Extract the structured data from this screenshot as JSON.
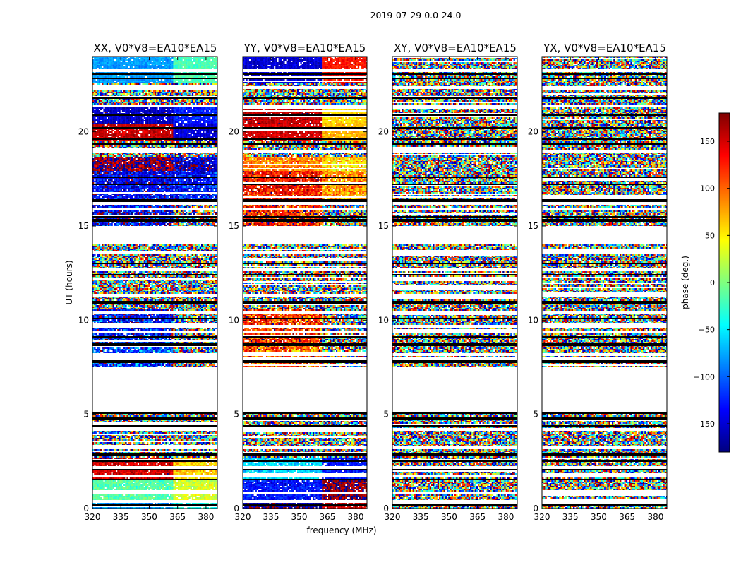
{
  "chart_data": {
    "type": "heatmap",
    "title": "2019-07-29 0.0-24.0",
    "xlabel": "frequency (MHz)",
    "ylabel": "UT (hours)",
    "colorbar_label": "phase (deg.)",
    "xlim": [
      320,
      386
    ],
    "ylim": [
      0,
      24
    ],
    "x_ticks": [
      320,
      335,
      350,
      365,
      380
    ],
    "y_ticks": [
      0,
      5,
      10,
      15,
      20
    ],
    "colorbar_range": [
      -180,
      180
    ],
    "colorbar_ticks": [
      -150,
      -100,
      -50,
      0,
      50,
      100,
      150
    ],
    "colorbar_tick_labels": [
      "−150",
      "−100",
      "−50",
      "0",
      "50",
      "100",
      "150"
    ],
    "colormap_stops": [
      "#00007f",
      "#0000ff",
      "#007fff",
      "#00ffff",
      "#7fff7f",
      "#ffff00",
      "#ff7f00",
      "#ff0000",
      "#7f0000"
    ],
    "frequency_break_mhz": 362,
    "empty_time_ranges": [
      [
        5.1,
        7.5
      ],
      [
        14.0,
        15.0
      ]
    ],
    "black_flag_bands": [
      23.05,
      22.85,
      21.8,
      20.9,
      20.2,
      19.6,
      19.35,
      17.6,
      17.2,
      16.35,
      15.5,
      15.3,
      14.75,
      13.0,
      12.4,
      10.95,
      10.1,
      9.1,
      8.7,
      7.8,
      5.05,
      4.8,
      4.4,
      2.85,
      2.5,
      2.05,
      1.55,
      0.2
    ],
    "white_gap_bands": [
      23.25,
      22.35,
      21.35,
      19.0,
      16.2,
      15.9,
      13.55,
      12.7,
      11.35,
      10.45,
      9.7,
      9.35,
      8.2,
      7.95,
      4.2,
      3.25,
      2.2,
      1.75,
      0.8,
      0.4
    ],
    "panels": [
      {
        "title": "XX, V0*V8=EA10*EA15",
        "segments": [
          {
            "t0": 0.0,
            "t1": 0.4,
            "mean_lo": -80,
            "mean_hi": -35,
            "noise": 30
          },
          {
            "t0": 0.4,
            "t1": 1.6,
            "mean_lo": -15,
            "mean_hi": 30,
            "noise": 30
          },
          {
            "t0": 1.6,
            "t1": 2.7,
            "mean_lo": 150,
            "mean_hi": 60,
            "noise": 35
          },
          {
            "t0": 2.7,
            "t1": 5.1,
            "mean_lo": null,
            "mean_hi": null,
            "noise": 180
          },
          {
            "t0": 7.5,
            "t1": 8.6,
            "mean_lo": -110,
            "mean_hi": null,
            "noise": 95
          },
          {
            "t0": 8.6,
            "t1": 10.6,
            "mean_lo": -130,
            "mean_hi": null,
            "noise": 85
          },
          {
            "t0": 10.6,
            "t1": 14.0,
            "mean_lo": null,
            "mean_hi": null,
            "noise": 180
          },
          {
            "t0": 15.0,
            "t1": 16.2,
            "mean_lo": -140,
            "mean_hi": null,
            "noise": 90
          },
          {
            "t0": 16.2,
            "t1": 17.9,
            "mean_lo": -140,
            "mean_hi": -130,
            "noise": 60
          },
          {
            "t0": 17.9,
            "t1": 18.7,
            "mean_lo": 175,
            "mean_hi": -150,
            "noise": 55
          },
          {
            "t0": 18.7,
            "t1": 19.5,
            "mean_lo": null,
            "mean_hi": null,
            "noise": 180
          },
          {
            "t0": 19.5,
            "t1": 20.4,
            "mean_lo": 155,
            "mean_hi": -150,
            "noise": 25
          },
          {
            "t0": 20.4,
            "t1": 21.3,
            "mean_lo": -155,
            "mean_hi": -125,
            "noise": 25
          },
          {
            "t0": 21.3,
            "t1": 22.6,
            "mean_lo": null,
            "mean_hi": null,
            "noise": 180
          },
          {
            "t0": 22.6,
            "t1": 24.0,
            "mean_lo": -80,
            "mean_hi": -20,
            "noise": 20
          }
        ]
      },
      {
        "title": "YY, V0*V8=EA10*EA15",
        "segments": [
          {
            "t0": 0.0,
            "t1": 0.4,
            "mean_lo": -170,
            "mean_hi": 150,
            "noise": 30
          },
          {
            "t0": 0.4,
            "t1": 1.6,
            "mean_lo": -130,
            "mean_hi": 175,
            "noise": 35
          },
          {
            "t0": 1.6,
            "t1": 2.7,
            "mean_lo": -60,
            "mean_hi": -130,
            "noise": 35
          },
          {
            "t0": 2.7,
            "t1": 5.1,
            "mean_lo": null,
            "mean_hi": null,
            "noise": 180
          },
          {
            "t0": 7.5,
            "t1": 8.6,
            "mean_lo": 110,
            "mean_hi": null,
            "noise": 95
          },
          {
            "t0": 8.6,
            "t1": 10.6,
            "mean_lo": 120,
            "mean_hi": null,
            "noise": 85
          },
          {
            "t0": 10.6,
            "t1": 14.0,
            "mean_lo": null,
            "mean_hi": null,
            "noise": 180
          },
          {
            "t0": 15.0,
            "t1": 16.2,
            "mean_lo": 130,
            "mean_hi": null,
            "noise": 90
          },
          {
            "t0": 16.2,
            "t1": 17.9,
            "mean_lo": 130,
            "mean_hi": 80,
            "noise": 60
          },
          {
            "t0": 17.9,
            "t1": 18.7,
            "mean_lo": 90,
            "mean_hi": 60,
            "noise": 50
          },
          {
            "t0": 18.7,
            "t1": 19.5,
            "mean_lo": null,
            "mean_hi": null,
            "noise": 180
          },
          {
            "t0": 19.5,
            "t1": 20.4,
            "mean_lo": 150,
            "mean_hi": 70,
            "noise": 25
          },
          {
            "t0": 20.4,
            "t1": 21.3,
            "mean_lo": 160,
            "mean_hi": 60,
            "noise": 25
          },
          {
            "t0": 21.3,
            "t1": 22.6,
            "mean_lo": null,
            "mean_hi": null,
            "noise": 180
          },
          {
            "t0": 22.6,
            "t1": 24.0,
            "mean_lo": -150,
            "mean_hi": 130,
            "noise": 25
          }
        ]
      },
      {
        "title": "XY, V0*V8=EA10*EA15",
        "segments": [
          {
            "t0": 0.0,
            "t1": 5.1,
            "mean_lo": null,
            "mean_hi": null,
            "noise": 180
          },
          {
            "t0": 7.5,
            "t1": 14.0,
            "mean_lo": null,
            "mean_hi": null,
            "noise": 180
          },
          {
            "t0": 15.0,
            "t1": 24.0,
            "mean_lo": null,
            "mean_hi": null,
            "noise": 180
          }
        ]
      },
      {
        "title": "YX, V0*V8=EA10*EA15",
        "segments": [
          {
            "t0": 0.0,
            "t1": 5.1,
            "mean_lo": null,
            "mean_hi": null,
            "noise": 180
          },
          {
            "t0": 7.5,
            "t1": 14.0,
            "mean_lo": null,
            "mean_hi": null,
            "noise": 180
          },
          {
            "t0": 15.0,
            "t1": 24.0,
            "mean_lo": null,
            "mean_hi": null,
            "noise": 180
          }
        ]
      }
    ]
  }
}
